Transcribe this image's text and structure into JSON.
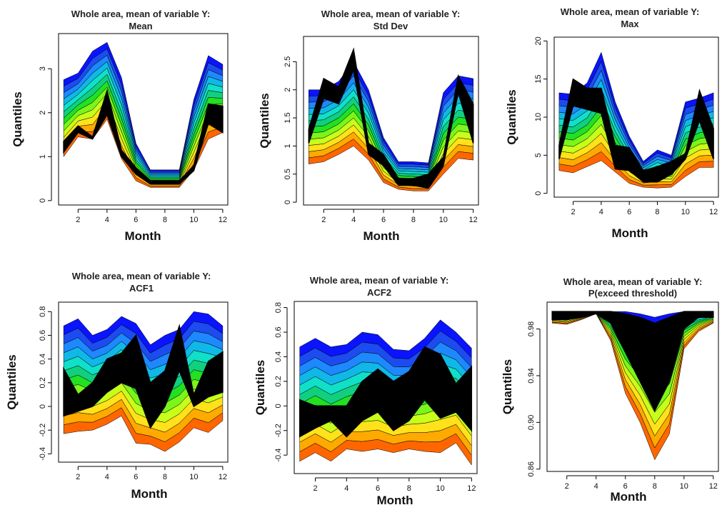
{
  "figure": {
    "ylabel": "Quantiles",
    "xlabel": "Month"
  },
  "band_colors": [
    "#ff6600",
    "#ffaa00",
    "#ffe21a",
    "#c8ff1a",
    "#7cf51a",
    "#22e022",
    "#10d080",
    "#10e0c8",
    "#10b8e8",
    "#1e88ff",
    "#1c4cf0",
    "#0a14ff"
  ],
  "chart_data": [
    {
      "type": "area",
      "title": "Whole area, mean of variable Y:",
      "subtitle": "Mean",
      "xlabel": "Month",
      "ylabel": "Quantiles",
      "x": [
        1,
        2,
        3,
        4,
        5,
        6,
        7,
        8,
        9,
        10,
        11,
        12
      ],
      "xticks": [
        2,
        4,
        6,
        8,
        10,
        12
      ],
      "yticks": [
        0,
        1,
        2,
        3
      ],
      "ylim": [
        -0.1,
        3.8
      ],
      "lower": [
        1.0,
        1.45,
        1.4,
        1.85,
        0.95,
        0.45,
        0.3,
        0.3,
        0.3,
        0.7,
        1.4,
        1.55
      ],
      "upper": [
        2.75,
        2.9,
        3.4,
        3.6,
        2.8,
        1.3,
        0.7,
        0.7,
        0.7,
        2.3,
        3.3,
        3.1
      ],
      "observed": {
        "lower": [
          1.1,
          1.55,
          1.4,
          1.95,
          1.0,
          0.6,
          0.38,
          0.38,
          0.38,
          0.68,
          1.75,
          1.55
        ],
        "upper": [
          1.35,
          1.7,
          1.45,
          2.5,
          1.15,
          0.75,
          0.45,
          0.45,
          0.45,
          0.8,
          2.2,
          2.15
        ]
      }
    },
    {
      "type": "area",
      "title": "Whole area, mean of variable Y:",
      "subtitle": "Std Dev",
      "xlabel": "Month",
      "ylabel": "Quantiles",
      "x": [
        1,
        2,
        3,
        4,
        5,
        6,
        7,
        8,
        9,
        10,
        11,
        12
      ],
      "xticks": [
        2,
        4,
        6,
        8,
        10,
        12
      ],
      "yticks": [
        0.0,
        0.5,
        1.0,
        1.5,
        2.0,
        2.5
      ],
      "ylim": [
        -0.05,
        2.95
      ],
      "lower": [
        0.68,
        0.72,
        0.85,
        1.0,
        0.75,
        0.35,
        0.23,
        0.2,
        0.2,
        0.5,
        0.78,
        0.75
      ],
      "upper": [
        2.0,
        2.0,
        2.15,
        2.5,
        2.0,
        1.15,
        0.72,
        0.72,
        0.7,
        1.95,
        2.25,
        2.2
      ],
      "observed": {
        "lower": [
          1.05,
          1.85,
          1.75,
          2.35,
          0.85,
          0.65,
          0.3,
          0.3,
          0.25,
          0.65,
          1.95,
          1.05
        ],
        "upper": [
          1.3,
          2.2,
          2.05,
          2.72,
          1.05,
          0.85,
          0.42,
          0.42,
          0.5,
          0.8,
          2.25,
          1.75
        ]
      }
    },
    {
      "type": "area",
      "title": "Whole area, mean of variable Y:",
      "subtitle": "Max",
      "xlabel": "Month",
      "ylabel": "Quantiles",
      "x": [
        1,
        2,
        3,
        4,
        5,
        6,
        7,
        8,
        9,
        10,
        11,
        12
      ],
      "xticks": [
        2,
        4,
        6,
        8,
        10,
        12
      ],
      "yticks": [
        0,
        5,
        10,
        15,
        20
      ],
      "ylim": [
        -0.5,
        20.5
      ],
      "lower": [
        3.0,
        2.7,
        3.5,
        4.3,
        2.8,
        1.3,
        0.8,
        0.7,
        0.8,
        2.2,
        3.4,
        3.4
      ],
      "upper": [
        13.2,
        13.0,
        14.5,
        18.5,
        12.0,
        7.5,
        4.2,
        5.7,
        5.0,
        12.0,
        12.5,
        13.2
      ],
      "observed": {
        "lower": [
          4.5,
          11.5,
          11.0,
          10.5,
          3.2,
          3.0,
          1.5,
          1.5,
          2.5,
          4.5,
          9.5,
          4.5
        ],
        "upper": [
          6.3,
          15.0,
          13.8,
          13.8,
          6.3,
          6.0,
          3.0,
          3.5,
          4.2,
          5.2,
          13.5,
          8.5
        ]
      }
    },
    {
      "type": "area",
      "title": "Whole area, mean of variable Y:",
      "subtitle": "ACF1",
      "xlabel": "Month",
      "ylabel": "Quantiles",
      "x": [
        1,
        2,
        3,
        4,
        5,
        6,
        7,
        8,
        9,
        10,
        11,
        12
      ],
      "xticks": [
        2,
        4,
        6,
        8,
        10,
        12
      ],
      "yticks": [
        -0.4,
        -0.2,
        0.0,
        0.2,
        0.4,
        0.6,
        0.8
      ],
      "ylim": [
        -0.47,
        0.88
      ],
      "lower": [
        -0.23,
        -0.21,
        -0.2,
        -0.15,
        -0.08,
        -0.31,
        -0.32,
        -0.38,
        -0.3,
        -0.18,
        -0.22,
        -0.12
      ],
      "upper": [
        0.68,
        0.74,
        0.6,
        0.65,
        0.76,
        0.7,
        0.52,
        0.6,
        0.65,
        0.8,
        0.78,
        0.68
      ],
      "observed": {
        "lower": [
          -0.08,
          -0.04,
          0.0,
          0.12,
          0.2,
          0.15,
          -0.18,
          0.0,
          0.3,
          0.0,
          0.08,
          0.12
        ],
        "upper": [
          0.32,
          0.1,
          0.2,
          0.4,
          0.45,
          0.6,
          0.2,
          0.3,
          0.68,
          0.1,
          0.38,
          0.46
        ]
      }
    },
    {
      "type": "area",
      "title": "Whole area, mean of variable Y:",
      "subtitle": "ACF2",
      "xlabel": "Month",
      "ylabel": "Quantiles",
      "x": [
        1,
        2,
        3,
        4,
        5,
        6,
        7,
        8,
        9,
        10,
        11,
        12
      ],
      "xticks": [
        2,
        4,
        6,
        8,
        10,
        12
      ],
      "yticks": [
        -0.4,
        -0.2,
        0.0,
        0.2,
        0.4,
        0.6,
        0.8
      ],
      "ylim": [
        -0.55,
        0.85
      ],
      "lower": [
        -0.45,
        -0.38,
        -0.45,
        -0.35,
        -0.37,
        -0.35,
        -0.38,
        -0.35,
        -0.37,
        -0.38,
        -0.3,
        -0.48
      ],
      "upper": [
        0.48,
        0.55,
        0.48,
        0.5,
        0.6,
        0.58,
        0.46,
        0.45,
        0.55,
        0.7,
        0.6,
        0.47
      ],
      "observed": {
        "lower": [
          -0.25,
          -0.18,
          -0.12,
          -0.25,
          -0.12,
          -0.05,
          -0.2,
          -0.12,
          0.05,
          -0.1,
          -0.05,
          -0.2
        ],
        "upper": [
          0.05,
          0.0,
          0.0,
          0.0,
          0.2,
          0.3,
          0.2,
          0.28,
          0.48,
          0.42,
          0.18,
          0.32
        ]
      }
    },
    {
      "type": "area",
      "title": "Whole area, mean of variable Y:",
      "subtitle": "P(exceed threshold)",
      "xlabel": "Month",
      "ylabel": "Quantiles",
      "x": [
        1,
        2,
        3,
        4,
        5,
        6,
        7,
        8,
        9,
        10,
        11,
        12
      ],
      "xticks": [
        2,
        4,
        6,
        8,
        10,
        12
      ],
      "yticks": [
        0.86,
        0.9,
        0.94,
        0.98
      ],
      "ylim": [
        0.858,
        1.003
      ],
      "lower": [
        0.985,
        0.984,
        0.988,
        0.993,
        0.97,
        0.925,
        0.9,
        0.868,
        0.89,
        0.963,
        0.978,
        0.985
      ],
      "upper": [
        0.995,
        0.995,
        0.995,
        0.995,
        0.995,
        0.995,
        0.993,
        0.99,
        0.993,
        0.995,
        0.995,
        0.995
      ],
      "observed": {
        "lower": [
          0.988,
          0.988,
          0.99,
          0.993,
          0.985,
          0.96,
          0.935,
          0.91,
          0.935,
          0.98,
          0.99,
          0.99
        ],
        "upper": [
          0.995,
          0.995,
          0.995,
          0.995,
          0.995,
          0.993,
          0.99,
          0.985,
          0.99,
          0.995,
          0.995,
          0.995
        ]
      }
    }
  ]
}
